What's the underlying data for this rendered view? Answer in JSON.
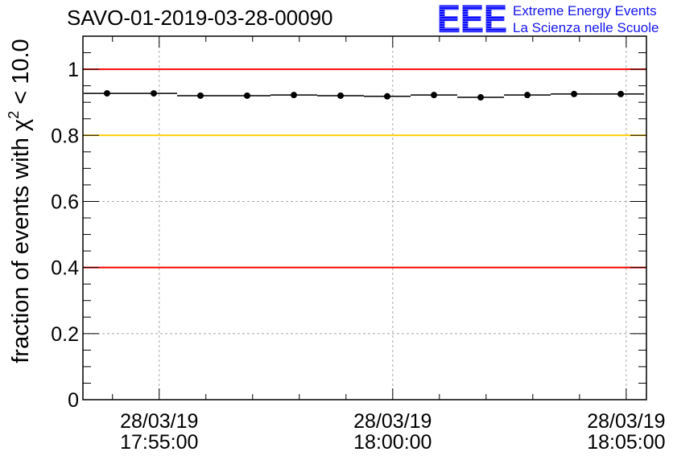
{
  "logo": {
    "mark": "EEE",
    "line1": "Extreme Energy Events",
    "line2": "La Scienza nelle Scuole",
    "color": "#1414f0"
  },
  "chart_data": {
    "type": "scatter",
    "title": "SAVO-01-2019-03-28-00090",
    "xlabel": "",
    "ylabel": {
      "text": "fraction of events with ",
      "symbol": "χ",
      "sup": "2",
      "tail": " < 10.0"
    },
    "xlim": [
      64402,
      65126
    ],
    "ylim": [
      0,
      1.1
    ],
    "grid": true,
    "bin_width": 60,
    "x_ticks": [
      {
        "t": 64500,
        "date": "28/03/19",
        "time": "17:55:00"
      },
      {
        "t": 64800,
        "date": "28/03/19",
        "time": "18:00:00"
      },
      {
        "t": 65100,
        "date": "28/03/19",
        "time": "18:05:00"
      }
    ],
    "y_ticks": [
      {
        "value": 0,
        "label": "0"
      },
      {
        "value": 0.2,
        "label": "0.2"
      },
      {
        "value": 0.4,
        "label": "0.4"
      },
      {
        "value": 0.6,
        "label": "0.6"
      },
      {
        "value": 0.8,
        "label": "0.8"
      },
      {
        "value": 1.0,
        "label": "1"
      }
    ],
    "reference_lines": [
      {
        "value": 1.0,
        "color": "#ff0000"
      },
      {
        "value": 0.8,
        "color": "#ffcc00"
      },
      {
        "value": 0.4,
        "color": "#ff0000"
      }
    ],
    "series": [
      {
        "x": [
          64433,
          64493,
          64553,
          64613,
          64673,
          64733,
          64793,
          64853,
          64913,
          64973,
          65033,
          65093
        ],
        "y": [
          0.927,
          0.927,
          0.92,
          0.92,
          0.922,
          0.92,
          0.918,
          0.922,
          0.915,
          0.922,
          0.925,
          0.925
        ]
      }
    ]
  }
}
